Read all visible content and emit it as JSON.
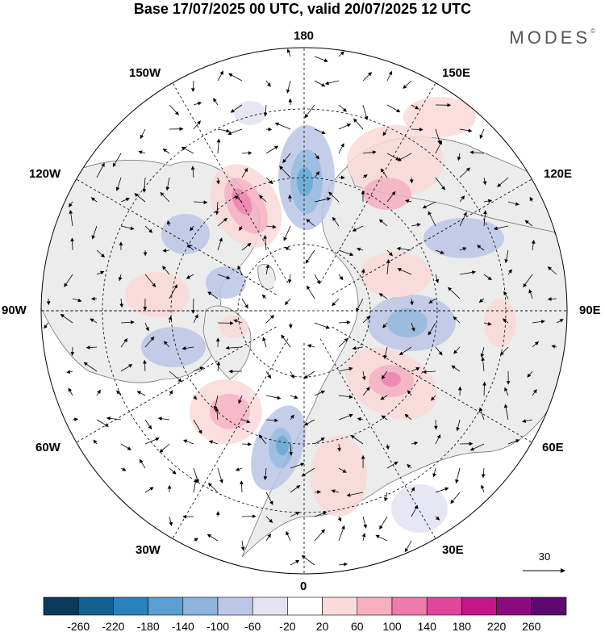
{
  "header": {
    "title": "Base 17/07/2025 00 UTC, valid 20/07/2025 12 UTC",
    "brand": "MODES"
  },
  "map": {
    "projection": "north-polar-stereographic",
    "lon_labels": {
      "top": "180",
      "bottom": "0",
      "left": "90W",
      "right": "90E",
      "upper_left_1": "150W",
      "upper_left_2": "120W",
      "upper_right_1": "150E",
      "upper_right_2": "120E",
      "lower_left_1": "60W",
      "lower_left_2": "30W",
      "lower_right_1": "60E",
      "lower_right_2": "30E"
    },
    "colors": {
      "land": "#ececec",
      "ocean": "#ffffff",
      "coast": "#555555",
      "grid": "#000000"
    }
  },
  "vector_key": {
    "label": "30"
  },
  "colorbar": {
    "ticks": [
      "-260",
      "-220",
      "-180",
      "-140",
      "-100",
      "-60",
      "-20",
      "20",
      "60",
      "100",
      "140",
      "180",
      "220",
      "260"
    ],
    "colors": [
      "#0b3b5c",
      "#14608f",
      "#2a82bd",
      "#5a9fcf",
      "#8fb4dc",
      "#bcc6e6",
      "#e3e3f2",
      "#ffffff",
      "#fbd9d9",
      "#f6aec1",
      "#ef7bab",
      "#e0469a",
      "#c3168a",
      "#8c0a7e",
      "#5c0a70"
    ]
  }
}
